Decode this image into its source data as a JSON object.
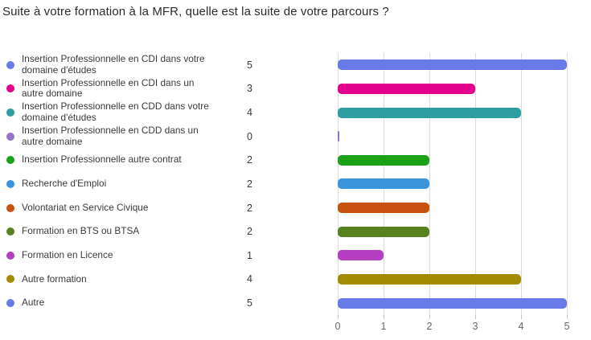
{
  "title": "Suite à votre formation à la MFR, quelle est la suite de votre parcours ?",
  "chart_data": {
    "type": "bar",
    "orientation": "horizontal",
    "title": "Suite à votre formation à la MFR, quelle est la suite de votre parcours ?",
    "categories": [
      "Insertion Professionnelle en CDI dans votre domaine d'études",
      "Insertion Professionnelle en CDI dans un autre domaine",
      "Insertion Professionnelle en CDD dans votre domaine d'études",
      "Insertion Professionnelle en CDD dans un autre domaine",
      "Insertion Professionnelle autre contrat",
      "Recherche d'Emploi",
      "Volontariat en Service Civique",
      "Formation en BTS ou BTSA",
      "Formation en Licence",
      "Autre formation",
      "Autre"
    ],
    "values": [
      5,
      3,
      4,
      0,
      2,
      2,
      2,
      2,
      1,
      4,
      5
    ],
    "colors": [
      "#6879e8",
      "#e3008c",
      "#2e9da1",
      "#9673c6",
      "#1aa115",
      "#3a95dd",
      "#c95110",
      "#57801f",
      "#b43fc2",
      "#a38b00",
      "#6879e8"
    ],
    "xlabel": "",
    "ylabel": "",
    "xlim": [
      0,
      5
    ],
    "x_ticks": [
      0,
      1,
      2,
      3,
      4,
      5
    ],
    "grid": true,
    "legend_position": "left"
  }
}
